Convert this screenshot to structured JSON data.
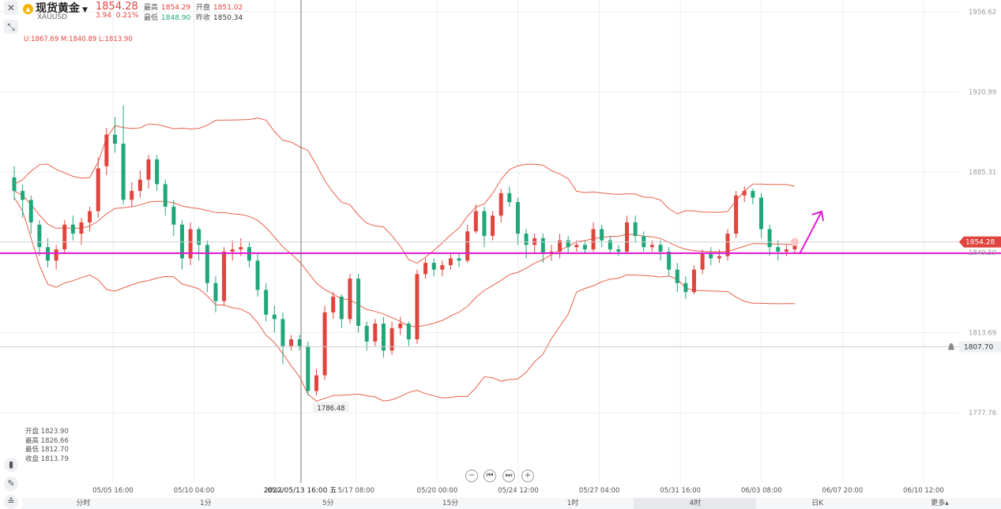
{
  "header": {
    "name": "现货黄金",
    "symbol": "XAUUSD",
    "last_price": "1854.28",
    "change": "3.94",
    "change_pct": "0.21%",
    "high_label": "最高",
    "high": "1854.29",
    "open_label": "开盘",
    "open": "1851.02",
    "low_label": "最低",
    "low": "1848.90",
    "prev_close_label": "昨收",
    "prev_close": "1850.34"
  },
  "bollinger_label": "U:1867.69  M:1840.89  L:1813.90",
  "crosshair_ohlc": [
    "开盘 1823.90",
    "最高 1826.66",
    "最低 1812.70",
    "收盘 1813.79"
  ],
  "crosshair_time": "2022/05/13 16:00 五",
  "low_marker": "1786.48",
  "price_tag": "1854.28",
  "alert_price": "1807.70",
  "timeframes": [
    "分时",
    "1分",
    "5分",
    "15分",
    "1时",
    "4时",
    "日K",
    "更多▴"
  ],
  "active_timeframe": 5,
  "colors": {
    "up": "#e0443e",
    "down": "#1fa77a",
    "band": "#e8604a",
    "magenta": "#e11cd6",
    "tag": "#e0443e"
  },
  "chart_data": {
    "type": "candlestick",
    "y_ticks": [
      "1956.62",
      "1920.99",
      "1885.31",
      "1849.59",
      "1813.69",
      "1777.76"
    ],
    "ylim": [
      1763,
      1960
    ],
    "x_ticks": [
      "05/05 16:00",
      "05/10 04:00",
      "05/1",
      "5/17 08:00",
      "05/20 00:00",
      "05/24 12:00",
      "05/27 04:00",
      "05/31 16:00",
      "06/03 08:00",
      "06/07 20:00",
      "06/10 12:00"
    ],
    "horizontal_lines": [
      1854.28,
      1807.7,
      1849.3
    ],
    "candles": [
      [
        1883,
        1877,
        1888,
        1873
      ],
      [
        1877,
        1873,
        1880,
        1865
      ],
      [
        1873,
        1863,
        1875,
        1858
      ],
      [
        1862,
        1852,
        1864,
        1848
      ],
      [
        1852,
        1846,
        1856,
        1843
      ],
      [
        1846,
        1851,
        1853,
        1842
      ],
      [
        1851,
        1862,
        1864,
        1849
      ],
      [
        1862,
        1858,
        1866,
        1855
      ],
      [
        1858,
        1863,
        1865,
        1853
      ],
      [
        1863,
        1868,
        1870,
        1859
      ],
      [
        1868,
        1887,
        1892,
        1865
      ],
      [
        1888,
        1902,
        1905,
        1884
      ],
      [
        1902,
        1898,
        1910,
        1894
      ],
      [
        1898,
        1873,
        1915,
        1871
      ],
      [
        1873,
        1877,
        1881,
        1870
      ],
      [
        1877,
        1882,
        1886,
        1874
      ],
      [
        1882,
        1891,
        1893,
        1878
      ],
      [
        1891,
        1880,
        1893,
        1877
      ],
      [
        1880,
        1870,
        1882,
        1866
      ],
      [
        1870,
        1862,
        1873,
        1857
      ],
      [
        1862,
        1847,
        1864,
        1842
      ],
      [
        1847,
        1860,
        1863,
        1844
      ],
      [
        1860,
        1853,
        1861,
        1846
      ],
      [
        1853,
        1836,
        1855,
        1832
      ],
      [
        1836,
        1828,
        1839,
        1823
      ],
      [
        1828,
        1850,
        1852,
        1826
      ],
      [
        1850,
        1851,
        1855,
        1846
      ],
      [
        1851,
        1852,
        1856,
        1848
      ],
      [
        1852,
        1846,
        1854,
        1843
      ],
      [
        1846,
        1833,
        1849,
        1830
      ],
      [
        1833,
        1822,
        1836,
        1819
      ],
      [
        1822,
        1820,
        1826,
        1814
      ],
      [
        1820,
        1808,
        1823,
        1800
      ],
      [
        1808,
        1811,
        1813,
        1806
      ],
      [
        1811,
        1808,
        1813,
        1806
      ],
      [
        1808,
        1788,
        1810,
        1786
      ],
      [
        1788,
        1795,
        1798,
        1786
      ],
      [
        1795,
        1823,
        1826,
        1793
      ],
      [
        1823,
        1830,
        1832,
        1820
      ],
      [
        1830,
        1820,
        1831,
        1816
      ],
      [
        1820,
        1838,
        1840,
        1818
      ],
      [
        1838,
        1817,
        1840,
        1814
      ],
      [
        1817,
        1810,
        1819,
        1806
      ],
      [
        1810,
        1818,
        1820,
        1808
      ],
      [
        1818,
        1806,
        1821,
        1803
      ],
      [
        1806,
        1816,
        1819,
        1804
      ],
      [
        1816,
        1818,
        1821,
        1813
      ],
      [
        1818,
        1811,
        1819,
        1808
      ],
      [
        1811,
        1840,
        1842,
        1809
      ],
      [
        1840,
        1845,
        1847,
        1838
      ],
      [
        1845,
        1842,
        1847,
        1839
      ],
      [
        1842,
        1844,
        1846,
        1839
      ],
      [
        1844,
        1847,
        1849,
        1842
      ],
      [
        1847,
        1846,
        1849,
        1843
      ],
      [
        1846,
        1859,
        1862,
        1845
      ],
      [
        1859,
        1868,
        1871,
        1858
      ],
      [
        1868,
        1857,
        1870,
        1852
      ],
      [
        1857,
        1866,
        1868,
        1855
      ],
      [
        1866,
        1876,
        1878,
        1863
      ],
      [
        1876,
        1872,
        1879,
        1870
      ],
      [
        1872,
        1858,
        1874,
        1853
      ],
      [
        1858,
        1853,
        1860,
        1847
      ],
      [
        1853,
        1856,
        1858,
        1849
      ],
      [
        1856,
        1849,
        1858,
        1845
      ],
      [
        1849,
        1850,
        1853,
        1846
      ],
      [
        1850,
        1855,
        1858,
        1847
      ],
      [
        1855,
        1852,
        1857,
        1849
      ],
      [
        1852,
        1853,
        1855,
        1850
      ],
      [
        1853,
        1851,
        1855,
        1849
      ],
      [
        1851,
        1860,
        1863,
        1850
      ],
      [
        1860,
        1855,
        1862,
        1852
      ],
      [
        1855,
        1851,
        1857,
        1849
      ],
      [
        1851,
        1850,
        1853,
        1848
      ],
      [
        1850,
        1863,
        1866,
        1849
      ],
      [
        1863,
        1857,
        1866,
        1854
      ],
      [
        1857,
        1852,
        1859,
        1850
      ],
      [
        1852,
        1853,
        1855,
        1850
      ],
      [
        1853,
        1850,
        1855,
        1846
      ],
      [
        1850,
        1842,
        1852,
        1839
      ],
      [
        1842,
        1836,
        1845,
        1832
      ],
      [
        1836,
        1832,
        1839,
        1829
      ],
      [
        1832,
        1842,
        1844,
        1831
      ],
      [
        1842,
        1849,
        1851,
        1840
      ],
      [
        1849,
        1847,
        1852,
        1844
      ],
      [
        1847,
        1848,
        1851,
        1845
      ],
      [
        1848,
        1858,
        1860,
        1846
      ],
      [
        1858,
        1875,
        1877,
        1856
      ],
      [
        1875,
        1877,
        1879,
        1872
      ],
      [
        1877,
        1874,
        1878,
        1871
      ],
      [
        1874,
        1860,
        1876,
        1856
      ],
      [
        1860,
        1852,
        1862,
        1848
      ],
      [
        1852,
        1850,
        1855,
        1846
      ],
      [
        1850,
        1851,
        1853,
        1848
      ],
      [
        1851,
        1854,
        1856,
        1849
      ]
    ]
  }
}
